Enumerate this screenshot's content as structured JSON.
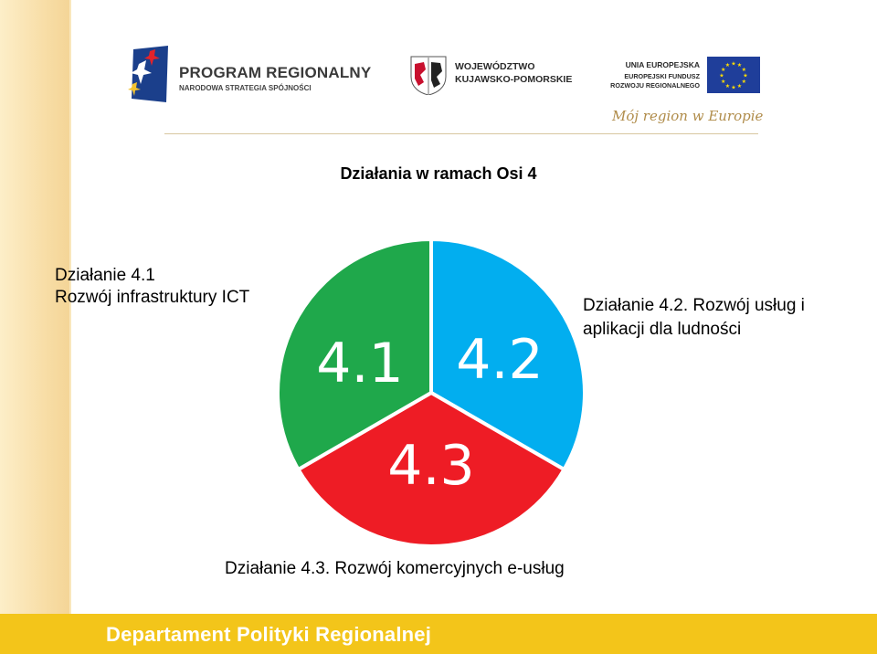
{
  "header": {
    "program_logo_title": "PROGRAM REGIONALNY",
    "program_logo_subtitle": "NARODOWA STRATEGIA SPÓJNOŚCI",
    "region_logo_line1": "WOJEWÓDZTWO",
    "region_logo_line2": "KUJAWSKO-POMORSKIE",
    "eu_logo_line1": "UNIA EUROPEJSKA",
    "eu_logo_line2": "EUROPEJSKI FUNDUSZ",
    "eu_logo_line3": "ROZWOJU REGIONALNEGO",
    "slogan": "Mój region w Europie"
  },
  "slide": {
    "title": "Działania w ramach Osi 4",
    "label_41_line1": "Działanie 4.1",
    "label_41_line2": "Rozwój infrastruktury ICT",
    "label_42_line1": "Działanie 4.2. Rozwój usług i",
    "label_42_line2": "aplikacji dla ludności",
    "label_43": "Działanie 4.3. Rozwój komercyjnych e-usług"
  },
  "chart_data": {
    "type": "pie",
    "categories": [
      "4.1",
      "4.2",
      "4.3"
    ],
    "values": [
      1,
      1,
      1
    ],
    "colors": [
      "#1fa84b",
      "#02aeef",
      "#ee1c25"
    ]
  },
  "footer": {
    "text": "Departament Polityki Regionalnej"
  },
  "colors": {
    "footer_background": "#f3c51a",
    "left_strip": "#f7dca4"
  }
}
